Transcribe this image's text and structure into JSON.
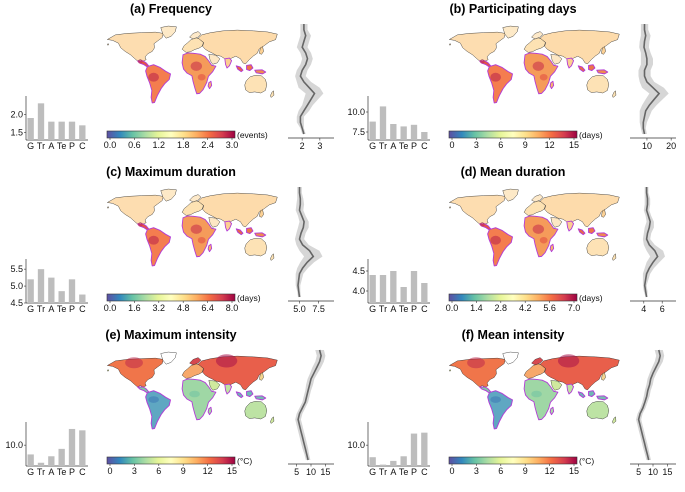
{
  "figure": {
    "background": "#ffffff",
    "ocean_color": "#ffffff",
    "coast_color": "#222222",
    "tropics_highlight_color": "#b23bd6",
    "bar_color": "#bdbdbd",
    "profile_line_color": "#666666",
    "profile_band_color": "#d6d6d6"
  },
  "chart_data": [
    {
      "type": "heatmap",
      "panel": "a",
      "title": "(a) Frequency",
      "colormap": "Spectral_r",
      "map_scale": "low",
      "colorbar": {
        "ticks": [
          "0.0",
          "0.6",
          "1.2",
          "1.8",
          "2.4",
          "3.0"
        ],
        "unit": "(events)",
        "range": [
          0,
          3
        ]
      },
      "bars": {
        "categories": [
          "G",
          "Tr",
          "A",
          "Te",
          "P",
          "C"
        ],
        "values": [
          1.9,
          2.3,
          1.8,
          1.8,
          1.8,
          1.7
        ],
        "ylim": [
          1.3,
          2.5
        ],
        "yticks": [
          "1.5",
          "2.0"
        ],
        "ytick_values": [
          1.5,
          2.0
        ]
      },
      "profile": {
        "xticks": [
          "2",
          "3"
        ],
        "xtick_values": [
          2,
          3
        ],
        "xlim": [
          1.2,
          3.8
        ],
        "mean": [
          2.1,
          2.1,
          2.2,
          2.1,
          2.0,
          2.2,
          2.3,
          2.2,
          2.0,
          1.9,
          2.1,
          2.4,
          2.7,
          2.5,
          2.3,
          2.1,
          1.9,
          1.9,
          2.0,
          2.1
        ],
        "spread": [
          0.2,
          0.2,
          0.3,
          0.3,
          0.3,
          0.3,
          0.3,
          0.3,
          0.3,
          0.3,
          0.4,
          0.6,
          0.5,
          0.4,
          0.3,
          0.3,
          0.2,
          0.2,
          0.1,
          0.1
        ]
      }
    },
    {
      "type": "heatmap",
      "panel": "b",
      "title": "(b) Participating days",
      "colormap": "Spectral_r",
      "map_scale": "low",
      "colorbar": {
        "ticks": [
          "0",
          "3",
          "6",
          "9",
          "12",
          "15"
        ],
        "unit": "(days)",
        "range": [
          0,
          15
        ]
      },
      "bars": {
        "categories": [
          "G",
          "Tr",
          "A",
          "Te",
          "P",
          "C"
        ],
        "values": [
          8.8,
          10.7,
          8.5,
          8.2,
          8.4,
          7.5
        ],
        "ylim": [
          6.5,
          12
        ],
        "yticks": [
          "7.5",
          "10.0"
        ],
        "ytick_values": [
          7.5,
          10.0
        ]
      },
      "profile": {
        "xticks": [
          "10",
          "20"
        ],
        "xtick_values": [
          10,
          20
        ],
        "xlim": [
          3,
          22
        ],
        "mean": [
          9,
          9,
          9.5,
          9,
          8.8,
          9.5,
          10,
          10,
          9,
          9,
          10,
          12.5,
          15,
          13,
          11,
          9.5,
          9,
          8.5,
          8.5,
          9
        ],
        "spread": [
          1.5,
          1.5,
          2,
          2,
          2,
          2,
          2.5,
          2.5,
          2.5,
          2.5,
          3,
          4.5,
          4,
          3.5,
          3,
          2.5,
          2,
          1.5,
          1,
          1
        ]
      }
    },
    {
      "type": "heatmap",
      "panel": "c",
      "title": "(c) Maximum duration",
      "colormap": "Spectral_r",
      "map_scale": "low",
      "colorbar": {
        "ticks": [
          "0.0",
          "1.6",
          "3.2",
          "4.8",
          "6.4",
          "8.0"
        ],
        "unit": "(days)",
        "range": [
          0,
          8
        ]
      },
      "bars": {
        "categories": [
          "G",
          "Tr",
          "A",
          "Te",
          "P",
          "C"
        ],
        "values": [
          5.2,
          5.5,
          5.25,
          4.85,
          5.2,
          4.75
        ],
        "ylim": [
          4.5,
          5.8
        ],
        "yticks": [
          "4.5",
          "5.0",
          "5.5"
        ],
        "ytick_values": [
          4.5,
          5.0,
          5.5
        ]
      },
      "profile": {
        "xticks": [
          "5.0",
          "7.5"
        ],
        "xtick_values": [
          5.0,
          7.5
        ],
        "xlim": [
          3.5,
          9.5
        ],
        "mean": [
          5,
          5,
          5.1,
          5.1,
          5,
          5.3,
          5.6,
          5.5,
          5.2,
          5,
          5.4,
          6.3,
          6.8,
          6,
          5.4,
          5,
          4.9,
          4.8,
          4.9,
          5
        ],
        "spread": [
          0.3,
          0.3,
          0.4,
          0.5,
          0.5,
          0.5,
          0.6,
          0.7,
          0.6,
          0.6,
          0.8,
          1.3,
          1.2,
          0.9,
          0.7,
          0.5,
          0.4,
          0.3,
          0.2,
          0.2
        ]
      }
    },
    {
      "type": "heatmap",
      "panel": "d",
      "title": "(d) Mean duration",
      "colormap": "Spectral_r",
      "map_scale": "low",
      "colorbar": {
        "ticks": [
          "0.0",
          "1.4",
          "2.8",
          "4.2",
          "5.6",
          "7.0"
        ],
        "unit": "(days)",
        "range": [
          0,
          7
        ]
      },
      "bars": {
        "categories": [
          "G",
          "Tr",
          "A",
          "Te",
          "P",
          "C"
        ],
        "values": [
          4.4,
          4.4,
          4.5,
          4.1,
          4.5,
          4.2
        ],
        "ylim": [
          3.7,
          4.8
        ],
        "yticks": [
          "4.0",
          "4.5"
        ],
        "ytick_values": [
          4.0,
          4.5
        ]
      },
      "profile": {
        "xticks": [
          "4",
          "6"
        ],
        "xtick_values": [
          4,
          6
        ],
        "xlim": [
          2.5,
          7.5
        ],
        "mean": [
          4.3,
          4.3,
          4.4,
          4.4,
          4.3,
          4.5,
          4.7,
          4.6,
          4.4,
          4.3,
          4.6,
          5.2,
          5.5,
          5,
          4.6,
          4.3,
          4.2,
          4.1,
          4.2,
          4.3
        ],
        "spread": [
          0.2,
          0.2,
          0.3,
          0.3,
          0.3,
          0.3,
          0.4,
          0.5,
          0.4,
          0.4,
          0.6,
          0.9,
          0.8,
          0.7,
          0.5,
          0.4,
          0.3,
          0.2,
          0.2,
          0.1
        ]
      }
    },
    {
      "type": "heatmap",
      "panel": "e",
      "title": "(e) Maximum intensity",
      "colormap": "Spectral_r",
      "map_scale": "high_lat",
      "colorbar": {
        "ticks": [
          "0",
          "3",
          "6",
          "9",
          "12",
          "15"
        ],
        "unit": "(°C)",
        "range": [
          0,
          15
        ]
      },
      "bars": {
        "categories": [
          "G",
          "Tr",
          "A",
          "Te",
          "P",
          "C"
        ],
        "values": [
          8,
          6.2,
          7.6,
          9.2,
          13.5,
          13.2
        ],
        "ylim": [
          5.5,
          15
        ],
        "yticks": [
          "10.0"
        ],
        "ytick_values": [
          10.0
        ]
      },
      "profile": {
        "xticks": [
          "5",
          "10",
          "15"
        ],
        "xtick_values": [
          5,
          10,
          15
        ],
        "xlim": [
          2,
          18
        ],
        "mean": [
          13,
          13.5,
          13,
          12,
          11,
          10,
          9.5,
          9,
          8.5,
          8,
          7,
          6,
          5.5,
          6,
          6.5,
          7,
          7.5,
          8,
          8.5,
          9
        ],
        "spread": [
          1.5,
          1.5,
          1.5,
          1.5,
          1.3,
          1.2,
          1.2,
          1,
          1,
          1,
          1,
          1,
          1,
          1,
          1,
          1,
          1,
          1,
          0.8,
          0.8
        ]
      }
    },
    {
      "type": "heatmap",
      "panel": "f",
      "title": "(f) Mean intensity",
      "colormap": "Spectral_r",
      "map_scale": "high_lat",
      "colorbar": {
        "ticks": [
          "0",
          "3",
          "6",
          "9",
          "12",
          "15"
        ],
        "unit": "(°C)",
        "range": [
          0,
          15
        ]
      },
      "bars": {
        "categories": [
          "G",
          "Tr",
          "A",
          "Te",
          "P",
          "C"
        ],
        "values": [
          7.4,
          5.8,
          6.6,
          7.6,
          12.5,
          12.7
        ],
        "ylim": [
          5.5,
          15
        ],
        "yticks": [
          "10.0"
        ],
        "ytick_values": [
          10.0
        ]
      },
      "profile": {
        "xticks": [
          "5",
          "10",
          "15"
        ],
        "xtick_values": [
          5,
          10,
          15
        ],
        "xlim": [
          2,
          18
        ],
        "mean": [
          12,
          12.5,
          12,
          11,
          10,
          9.2,
          8.8,
          8.2,
          7.8,
          7.2,
          6.5,
          5.5,
          5,
          5.5,
          6,
          6.5,
          7,
          7.5,
          8,
          8.5
        ],
        "spread": [
          1.4,
          1.4,
          1.4,
          1.3,
          1.2,
          1.1,
          1.1,
          1,
          1,
          0.9,
          0.9,
          0.9,
          0.9,
          0.9,
          0.9,
          0.9,
          0.9,
          0.9,
          0.8,
          0.8
        ]
      }
    }
  ]
}
